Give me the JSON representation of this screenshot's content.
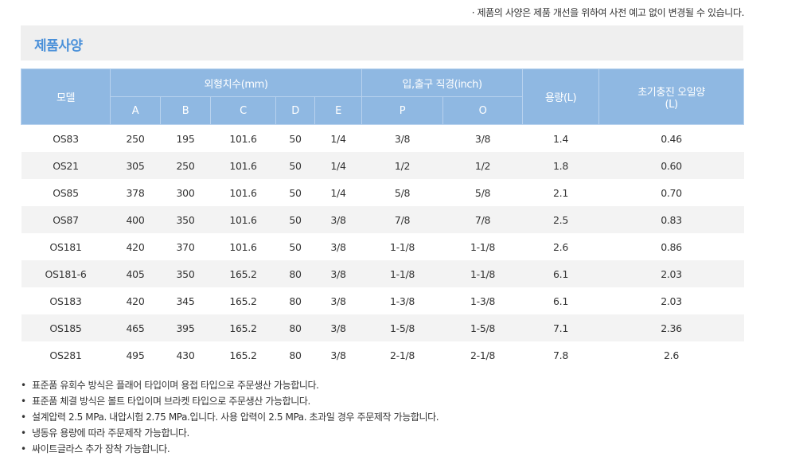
{
  "notice": "· 제품의 사양은 제품 개선을 위하여 사전 예고 없이 변경될 수 있습니다.",
  "section_title": "제품사양",
  "headers": {
    "model": "모델",
    "dimensions": "외형치수(mm)",
    "ports": "입,출구 직경(inch)",
    "capacity": "용량(L)",
    "oil_line1": "초기충진 오일양",
    "oil_line2": "(L)",
    "sub": [
      "A",
      "B",
      "C",
      "D",
      "E",
      "P",
      "O"
    ]
  },
  "rows": [
    [
      "OS83",
      "250",
      "195",
      "101.6",
      "50",
      "1/4",
      "3/8",
      "3/8",
      "1.4",
      "0.46"
    ],
    [
      "OS21",
      "305",
      "250",
      "101.6",
      "50",
      "1/4",
      "1/2",
      "1/2",
      "1.8",
      "0.60"
    ],
    [
      "OS85",
      "378",
      "300",
      "101.6",
      "50",
      "1/4",
      "5/8",
      "5/8",
      "2.1",
      "0.70"
    ],
    [
      "OS87",
      "400",
      "350",
      "101.6",
      "50",
      "3/8",
      "7/8",
      "7/8",
      "2.5",
      "0.83"
    ],
    [
      "OS181",
      "420",
      "370",
      "101.6",
      "50",
      "3/8",
      "1-1/8",
      "1-1/8",
      "2.6",
      "0.86"
    ],
    [
      "OS181-6",
      "405",
      "350",
      "165.2",
      "80",
      "3/8",
      "1-1/8",
      "1-1/8",
      "6.1",
      "2.03"
    ],
    [
      "OS183",
      "420",
      "345",
      "165.2",
      "80",
      "3/8",
      "1-3/8",
      "1-3/8",
      "6.1",
      "2.03"
    ],
    [
      "OS185",
      "465",
      "395",
      "165.2",
      "80",
      "3/8",
      "1-5/8",
      "1-5/8",
      "7.1",
      "2.36"
    ],
    [
      "OS281",
      "495",
      "430",
      "165.2",
      "80",
      "3/8",
      "2-1/8",
      "2-1/8",
      "7.8",
      "2.6"
    ]
  ],
  "notes": [
    "표준품 유회수 방식은 플래어 타입이며 용접 타입으로 주문생산 가능합니다.",
    "표준품 체결 방식은 볼트 타입이며 브라켓 타입으로 주문생산 가능합니다.",
    "설계압력 2.5 MPa. 내압시험 2.75 MPa.입니다. 사용 압력이 2.5 MPa. 초과일 경우 주문제작 가능합니다.",
    "냉동유 용량에 따라 주문제작 가능합니다.",
    "싸이트글라스 추가 장착 가능합니다."
  ],
  "bullet": "•"
}
